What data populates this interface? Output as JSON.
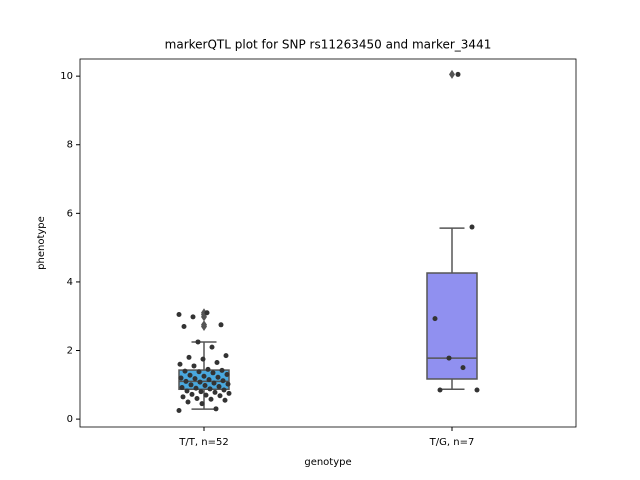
{
  "chart_data": {
    "type": "box",
    "title": "markerQTL plot for SNP rs11263450 and marker_3441",
    "xlabel": "genotype",
    "ylabel": "phenotype",
    "categories": [
      "T/T, n=52",
      "T/G, n=7"
    ],
    "boxes": [
      {
        "whislo": 0.29,
        "q1": 0.87,
        "med": 1.1,
        "q3": 1.43,
        "whishi": 2.25,
        "fliers": [
          2.7,
          2.75,
          2.98,
          3.05,
          3.1
        ],
        "color": "#4aa8de"
      },
      {
        "whislo": 0.87,
        "q1": 1.17,
        "med": 1.78,
        "q3": 4.26,
        "whishi": 5.57,
        "fliers": [
          10.05
        ],
        "color": "#9090f0"
      }
    ],
    "points": [
      [
        3.05,
        2.98,
        3.1,
        2.75,
        2.7,
        2.25,
        2.1,
        1.85,
        1.8,
        1.75,
        1.65,
        1.6,
        1.55,
        1.45,
        1.42,
        1.4,
        1.38,
        1.35,
        1.3,
        1.28,
        1.25,
        1.22,
        1.2,
        1.18,
        1.15,
        1.12,
        1.1,
        1.08,
        1.05,
        1.02,
        1.0,
        0.98,
        0.95,
        0.92,
        0.9,
        0.88,
        0.85,
        0.82,
        0.8,
        0.78,
        0.75,
        0.72,
        0.7,
        0.68,
        0.65,
        0.6,
        0.58,
        0.55,
        0.5,
        0.45,
        0.3,
        0.25
      ],
      [
        10.05,
        5.6,
        2.93,
        1.78,
        1.5,
        0.85,
        0.85
      ]
    ],
    "point_color": "#333333",
    "ylim": [
      -0.23,
      10.5
    ],
    "yticks": [
      0,
      2,
      4,
      6,
      8,
      10
    ]
  }
}
